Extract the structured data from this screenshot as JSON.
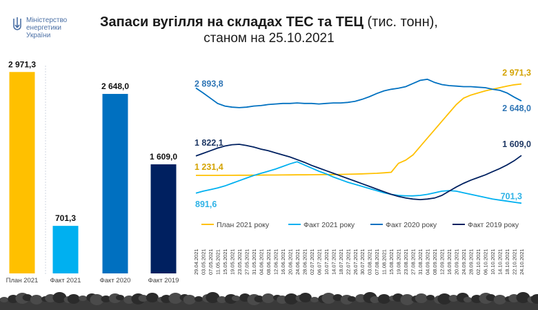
{
  "ministry": {
    "line1": "Міністерство",
    "line2": "енергетики",
    "line3": "України"
  },
  "title": {
    "bold": "Запаси вугілля на складах ТЕС та ТЕЦ",
    "units": "(тис. тонн),",
    "date_line": "станом на 25.10.2021"
  },
  "chart_data": [
    {
      "type": "bar",
      "categories": [
        "План 2021",
        "Факт 2021",
        "Факт 2020",
        "Факт 2019"
      ],
      "values": [
        2971.3,
        701.3,
        2648.0,
        1609.0
      ],
      "value_labels": [
        "2 971,3",
        "701,3",
        "2 648,0",
        "1 609,0"
      ],
      "colors": [
        "#FFC000",
        "#00B0F0",
        "#0070C0",
        "#002060"
      ],
      "ylim": [
        0,
        3300
      ]
    },
    {
      "type": "line",
      "x_labels": [
        "29.04.2021",
        "03.05.2021",
        "07.05.2021",
        "11.05.2021",
        "15.05.2021",
        "19.05.2021",
        "23.05.2021",
        "27.05.2021",
        "31.05.2021",
        "04.06.2021",
        "08.06.2021",
        "12.06.2021",
        "16.06.2021",
        "20.06.2021",
        "24.06.2021",
        "28.06.2021",
        "02.07.2021",
        "06.07.2021",
        "10.07.2021",
        "14.07.2021",
        "18.07.2021",
        "22.07.2021",
        "26.07.2021",
        "30.07.2021",
        "03.08.2021",
        "07.08.2021",
        "11.08.2021",
        "15.08.2021",
        "19.08.2021",
        "23.08.2021",
        "27.08.2021",
        "31.08.2021",
        "04.09.2021",
        "08.09.2021",
        "12.09.2021",
        "16.09.2021",
        "20.09.2021",
        "24.09.2021",
        "28.09.2021",
        "02.10.2021",
        "06.10.2021",
        "10.10.2021",
        "14.10.2021",
        "18.10.2021",
        "22.10.2021",
        "24.10.2021"
      ],
      "ylim": [
        600,
        3150
      ],
      "series": [
        {
          "name": "План 2021 року",
          "color": "#FFC000",
          "values": [
            1231.4,
            1231.4,
            1231.4,
            1231.4,
            1231.6,
            1232,
            1233,
            1234,
            1235,
            1236,
            1237,
            1238,
            1239,
            1240,
            1241,
            1242,
            1243,
            1244,
            1245,
            1247,
            1249,
            1252,
            1256,
            1260,
            1265,
            1270,
            1280,
            1290,
            1460,
            1520,
            1620,
            1780,
            1940,
            2100,
            2260,
            2420,
            2580,
            2700,
            2760,
            2800,
            2840,
            2870,
            2900,
            2930,
            2955,
            2971.3
          ],
          "start_label": "1 231,4",
          "end_label": "2 971,3"
        },
        {
          "name": "Факт 2021 року",
          "color": "#00B0F0",
          "values": [
            891.6,
            930,
            960,
            990,
            1030,
            1080,
            1130,
            1180,
            1230,
            1270,
            1310,
            1350,
            1400,
            1450,
            1490,
            1430,
            1370,
            1310,
            1260,
            1200,
            1150,
            1100,
            1060,
            1020,
            980,
            940,
            900,
            870,
            850,
            840,
            840,
            850,
            870,
            900,
            930,
            940,
            930,
            900,
            870,
            840,
            810,
            780,
            760,
            740,
            720,
            701.3
          ],
          "start_label": "891,6",
          "end_label": "701,3"
        },
        {
          "name": "Факт 2020 року",
          "color": "#0070C0",
          "values": [
            2893.8,
            2800,
            2700,
            2600,
            2550,
            2530,
            2520,
            2530,
            2550,
            2560,
            2580,
            2590,
            2600,
            2600,
            2610,
            2600,
            2600,
            2590,
            2600,
            2610,
            2610,
            2620,
            2640,
            2680,
            2730,
            2790,
            2840,
            2870,
            2890,
            2920,
            2980,
            3040,
            3060,
            3000,
            2960,
            2940,
            2930,
            2920,
            2920,
            2910,
            2900,
            2870,
            2850,
            2800,
            2720,
            2648.0
          ],
          "start_label": "2 893,8",
          "end_label": "2 648,0"
        },
        {
          "name": "Факт 2019 року",
          "color": "#002060",
          "values": [
            1600,
            1650,
            1700,
            1750,
            1790,
            1815,
            1822.1,
            1800,
            1770,
            1730,
            1700,
            1660,
            1620,
            1580,
            1530,
            1480,
            1420,
            1370,
            1320,
            1270,
            1220,
            1170,
            1120,
            1070,
            1020,
            970,
            920,
            870,
            830,
            800,
            780,
            770,
            780,
            800,
            850,
            930,
            1010,
            1080,
            1140,
            1190,
            1240,
            1300,
            1360,
            1430,
            1510,
            1609.0
          ],
          "peak_label": "1 822,1",
          "end_label": "1 609,0"
        }
      ]
    }
  ]
}
